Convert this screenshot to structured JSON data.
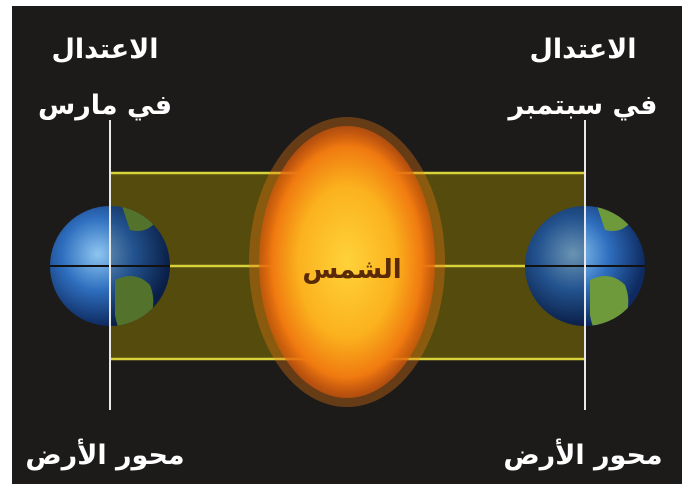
{
  "diagram": {
    "sun": {
      "label": "الشمس"
    },
    "left": {
      "title": "الاعتدال",
      "subtitle": "في مارس",
      "axis_label": "محور الأرض"
    },
    "right": {
      "title": "الاعتدال",
      "subtitle": "في سبتمبر",
      "axis_label": "محور الأرض"
    }
  }
}
